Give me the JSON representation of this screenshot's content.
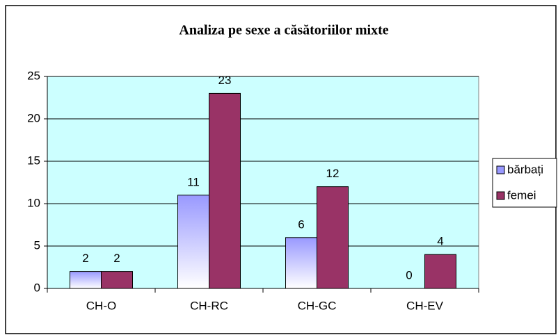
{
  "chart_data": {
    "type": "bar",
    "title": "Analiza pe sexe a căsătoriilor mixte",
    "categories": [
      "CH-O",
      "CH-RC",
      "CH-GC",
      "CH-EV"
    ],
    "series": [
      {
        "name": "bărbați",
        "color": "#9999ff",
        "values": [
          2,
          11,
          6,
          0
        ]
      },
      {
        "name": "femei",
        "color": "#993366",
        "values": [
          2,
          23,
          12,
          4
        ]
      }
    ],
    "ylim": [
      0,
      25
    ],
    "yticks": [
      0,
      5,
      10,
      15,
      20,
      25
    ],
    "grid": true,
    "legend": "right"
  }
}
